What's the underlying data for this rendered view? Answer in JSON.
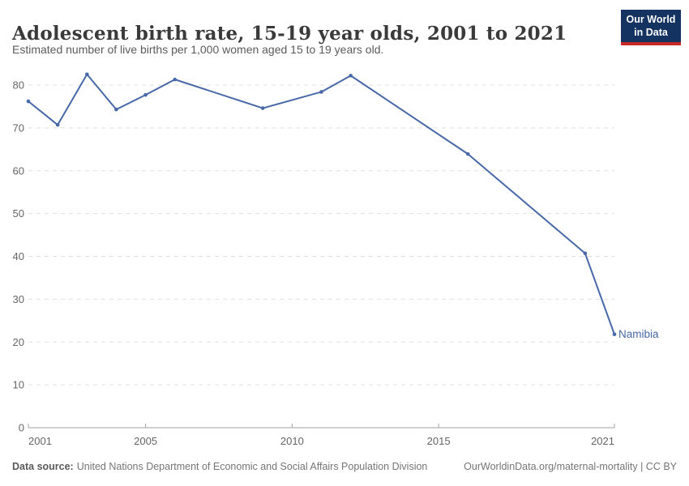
{
  "chart_data": {
    "type": "line",
    "title": "Adolescent birth rate, 15-19 year olds, 2001 to 2021",
    "subtitle": "Estimated number of live births per 1,000 women aged 15 to 19 years old.",
    "entity": "Namibia",
    "x": [
      2001,
      2002,
      2003,
      2004,
      2005,
      2006,
      2009,
      2011,
      2012,
      2016,
      2020,
      2021
    ],
    "values": [
      76.2,
      70.7,
      82.5,
      74.3,
      77.7,
      81.3,
      74.6,
      78.4,
      82.2,
      63.9,
      40.7,
      21.8
    ],
    "xlim": [
      2001,
      2021
    ],
    "ylim": [
      0,
      80
    ],
    "x_ticks": [
      2001,
      2005,
      2010,
      2015,
      2021
    ],
    "y_ticks": [
      0,
      10,
      20,
      30,
      40,
      50,
      60,
      70,
      80
    ],
    "grid": true,
    "legend_position": "line-end-label",
    "line_color": "#4868a8",
    "grid_color": "#e0e0e0",
    "axis_color": "#a3a3a3",
    "tick_label_color": "#666666"
  },
  "logo": {
    "line1": "Our World",
    "line2": "in Data",
    "bg_color": "#143360",
    "accent_color": "#c52a26"
  },
  "footer": {
    "source_label": "Data source:",
    "source_text": "United Nations Department of Economic and Social Affairs Population Division",
    "attribution": "OurWorldinData.org/maternal-mortality | CC BY"
  }
}
